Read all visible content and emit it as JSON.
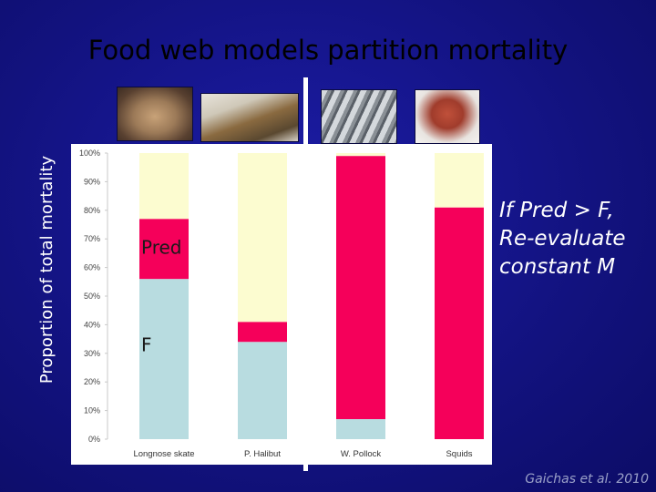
{
  "slide": {
    "title": "Food web models partition mortality",
    "y_axis_label": "Proportion of total mortality",
    "note_lines": [
      "If Pred > F,",
      "Re-evaluate",
      "constant M"
    ],
    "citation": "Gaichas et al. 2010",
    "photos": [
      "longnose-skate-photo",
      "pacific-halibut-photo",
      "walleye-pollock-photo",
      "squid-photo"
    ]
  },
  "chart_data": {
    "type": "bar",
    "stacked": true,
    "categories": [
      "Longnose skate",
      "P. Halibut",
      "W. Pollock",
      "Squids"
    ],
    "series": [
      {
        "name": "F",
        "values": [
          56,
          34,
          7,
          0
        ],
        "color": "#b8dce0"
      },
      {
        "name": "Pred",
        "values": [
          21,
          7,
          92,
          81
        ],
        "color": "#f5005a"
      },
      {
        "name": "",
        "values": [
          23,
          59,
          1,
          19
        ],
        "color": "#fcfcd0"
      }
    ],
    "inline_labels": [
      {
        "text": "Pred",
        "category": "Longnose skate",
        "y": 67
      },
      {
        "text": "F",
        "category": "Longnose skate",
        "y": 33
      }
    ],
    "ytick_labels": [
      "0%",
      "10%",
      "20%",
      "30%",
      "40%",
      "50%",
      "60%",
      "70%",
      "80%",
      "90%",
      "100%"
    ],
    "ylim": [
      0,
      100
    ],
    "background": "#ffffff",
    "divider_after_category": 1
  }
}
